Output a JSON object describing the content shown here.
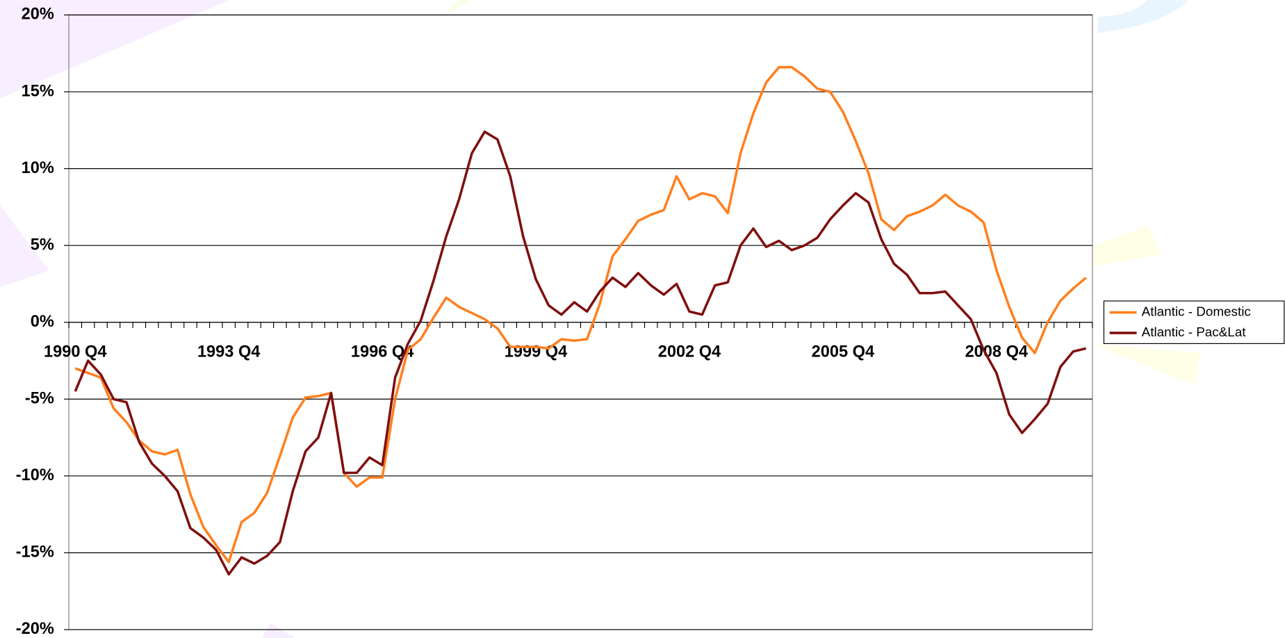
{
  "chart_data": {
    "type": "line",
    "categories": [
      "1990 Q4",
      null,
      null,
      null,
      null,
      null,
      null,
      null,
      null,
      null,
      null,
      null,
      "1993 Q4",
      null,
      null,
      null,
      null,
      null,
      null,
      null,
      null,
      null,
      null,
      null,
      "1996 Q4",
      null,
      null,
      null,
      null,
      null,
      null,
      null,
      null,
      null,
      null,
      null,
      "1999 Q4",
      null,
      null,
      null,
      null,
      null,
      null,
      null,
      null,
      null,
      null,
      null,
      "2002 Q4",
      null,
      null,
      null,
      null,
      null,
      null,
      null,
      null,
      null,
      null,
      null,
      "2005 Q4",
      null,
      null,
      null,
      null,
      null,
      null,
      null,
      null,
      null,
      null,
      null,
      "2008 Q4",
      null,
      null,
      null,
      null,
      null,
      null,
      null
    ],
    "series": [
      {
        "name": "Atlantic - Domestic",
        "color": "#ff7f1e",
        "values": [
          -3.0,
          -3.3,
          -3.6,
          -5.6,
          -6.5,
          -7.7,
          -8.4,
          -8.6,
          -8.3,
          -11.2,
          -13.3,
          -14.5,
          -15.6,
          -13.0,
          -12.4,
          -11.1,
          -8.7,
          -6.2,
          -4.9,
          -4.8,
          -4.6,
          -9.8,
          -10.7,
          -10.1,
          -10.1,
          -5.0,
          -1.8,
          -1.1,
          0.3,
          1.6,
          1.0,
          0.6,
          0.2,
          -0.4,
          -1.6,
          -1.6,
          -1.6,
          -1.7,
          -1.1,
          -1.2,
          -1.1,
          1.2,
          4.3,
          5.4,
          6.6,
          7.0,
          7.3,
          9.5,
          8.0,
          8.4,
          8.2,
          7.1,
          11.0,
          13.6,
          15.6,
          16.6,
          16.6,
          16.0,
          15.2,
          15.0,
          13.7,
          11.8,
          9.7,
          6.7,
          6.0,
          6.9,
          7.2,
          7.6,
          8.3,
          7.6,
          7.2,
          6.5,
          3.4,
          1.0,
          -1.0,
          -2.0,
          0.0,
          1.4,
          2.2,
          2.9
        ]
      },
      {
        "name": "Atlantic - Pac&Lat",
        "color": "#7f0f0f",
        "values": [
          -4.5,
          -2.5,
          -3.4,
          -5.0,
          -5.2,
          -7.8,
          -9.2,
          -10.0,
          -11.0,
          -13.4,
          -14.0,
          -14.8,
          -16.4,
          -15.3,
          -15.7,
          -15.2,
          -14.3,
          -11.0,
          -8.4,
          -7.5,
          -4.6,
          -9.8,
          -9.8,
          -8.8,
          -9.3,
          -3.6,
          -1.4,
          0.1,
          2.7,
          5.6,
          8.0,
          11.0,
          12.4,
          11.9,
          9.5,
          5.6,
          2.8,
          1.1,
          0.5,
          1.3,
          0.7,
          2.0,
          2.9,
          2.3,
          3.2,
          2.4,
          1.8,
          2.5,
          0.7,
          0.5,
          2.4,
          2.6,
          5.0,
          6.1,
          4.9,
          5.3,
          4.7,
          5.0,
          5.5,
          6.7,
          7.6,
          8.4,
          7.8,
          5.4,
          3.8,
          3.1,
          1.9,
          1.9,
          2.0,
          1.1,
          0.2,
          -1.8,
          -3.3,
          -6.0,
          -7.2,
          -6.3,
          -5.3,
          -2.9,
          -1.9,
          -1.7
        ]
      }
    ],
    "ylim": [
      -20,
      20
    ],
    "yticks": [
      {
        "value": -20,
        "label": "-20%"
      },
      {
        "value": -15,
        "label": "-15%"
      },
      {
        "value": -10,
        "label": "-10%"
      },
      {
        "value": -5,
        "label": "-5%"
      },
      {
        "value": 0,
        "label": "0%"
      },
      {
        "value": 5,
        "label": "5%"
      },
      {
        "value": 10,
        "label": "10%"
      },
      {
        "value": 15,
        "label": "15%"
      },
      {
        "value": 20,
        "label": "20%"
      }
    ],
    "grid": true,
    "legend": "right"
  }
}
